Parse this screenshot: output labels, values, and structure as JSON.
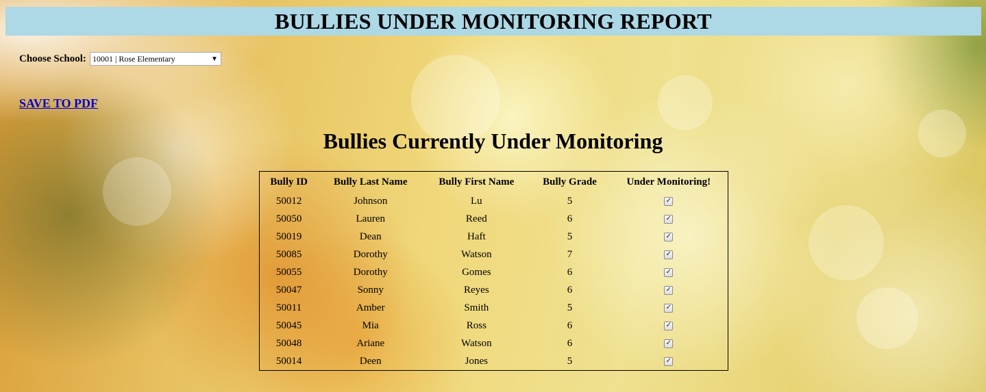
{
  "header": {
    "title": "BULLIES UNDER MONITORING REPORT"
  },
  "school_selector": {
    "label": "Choose School:",
    "selected_value": "10001 | Rose Elementary"
  },
  "actions": {
    "save_pdf_label": "SAVE TO PDF"
  },
  "report": {
    "title": "Bullies Currently Under Monitoring",
    "columns": [
      "Bully ID",
      "Bully Last Name",
      "Bully First Name",
      "Bully Grade",
      "Under Monitoring!"
    ],
    "rows": [
      {
        "id": "50012",
        "last": "Johnson",
        "first": "Lu",
        "grade": "5",
        "monitoring": true
      },
      {
        "id": "50050",
        "last": "Lauren",
        "first": "Reed",
        "grade": "6",
        "monitoring": true
      },
      {
        "id": "50019",
        "last": "Dean",
        "first": "Haft",
        "grade": "5",
        "monitoring": true
      },
      {
        "id": "50085",
        "last": "Dorothy",
        "first": "Watson",
        "grade": "7",
        "monitoring": true
      },
      {
        "id": "50055",
        "last": "Dorothy",
        "first": "Gomes",
        "grade": "6",
        "monitoring": true
      },
      {
        "id": "50047",
        "last": "Sonny",
        "first": "Reyes",
        "grade": "6",
        "monitoring": true
      },
      {
        "id": "50011",
        "last": "Amber",
        "first": "Smith",
        "grade": "5",
        "monitoring": true
      },
      {
        "id": "50045",
        "last": "Mia",
        "first": "Ross",
        "grade": "6",
        "monitoring": true
      },
      {
        "id": "50048",
        "last": "Ariane",
        "first": "Watson",
        "grade": "6",
        "monitoring": true
      },
      {
        "id": "50014",
        "last": "Deen",
        "first": "Jones",
        "grade": "5",
        "monitoring": true
      }
    ]
  },
  "colors": {
    "header_bg": "#add8e6",
    "link": "#0000cc"
  },
  "icons": {
    "dropdown": "dropdown-arrow-icon",
    "checkbox": "checkbox-checked-icon"
  }
}
